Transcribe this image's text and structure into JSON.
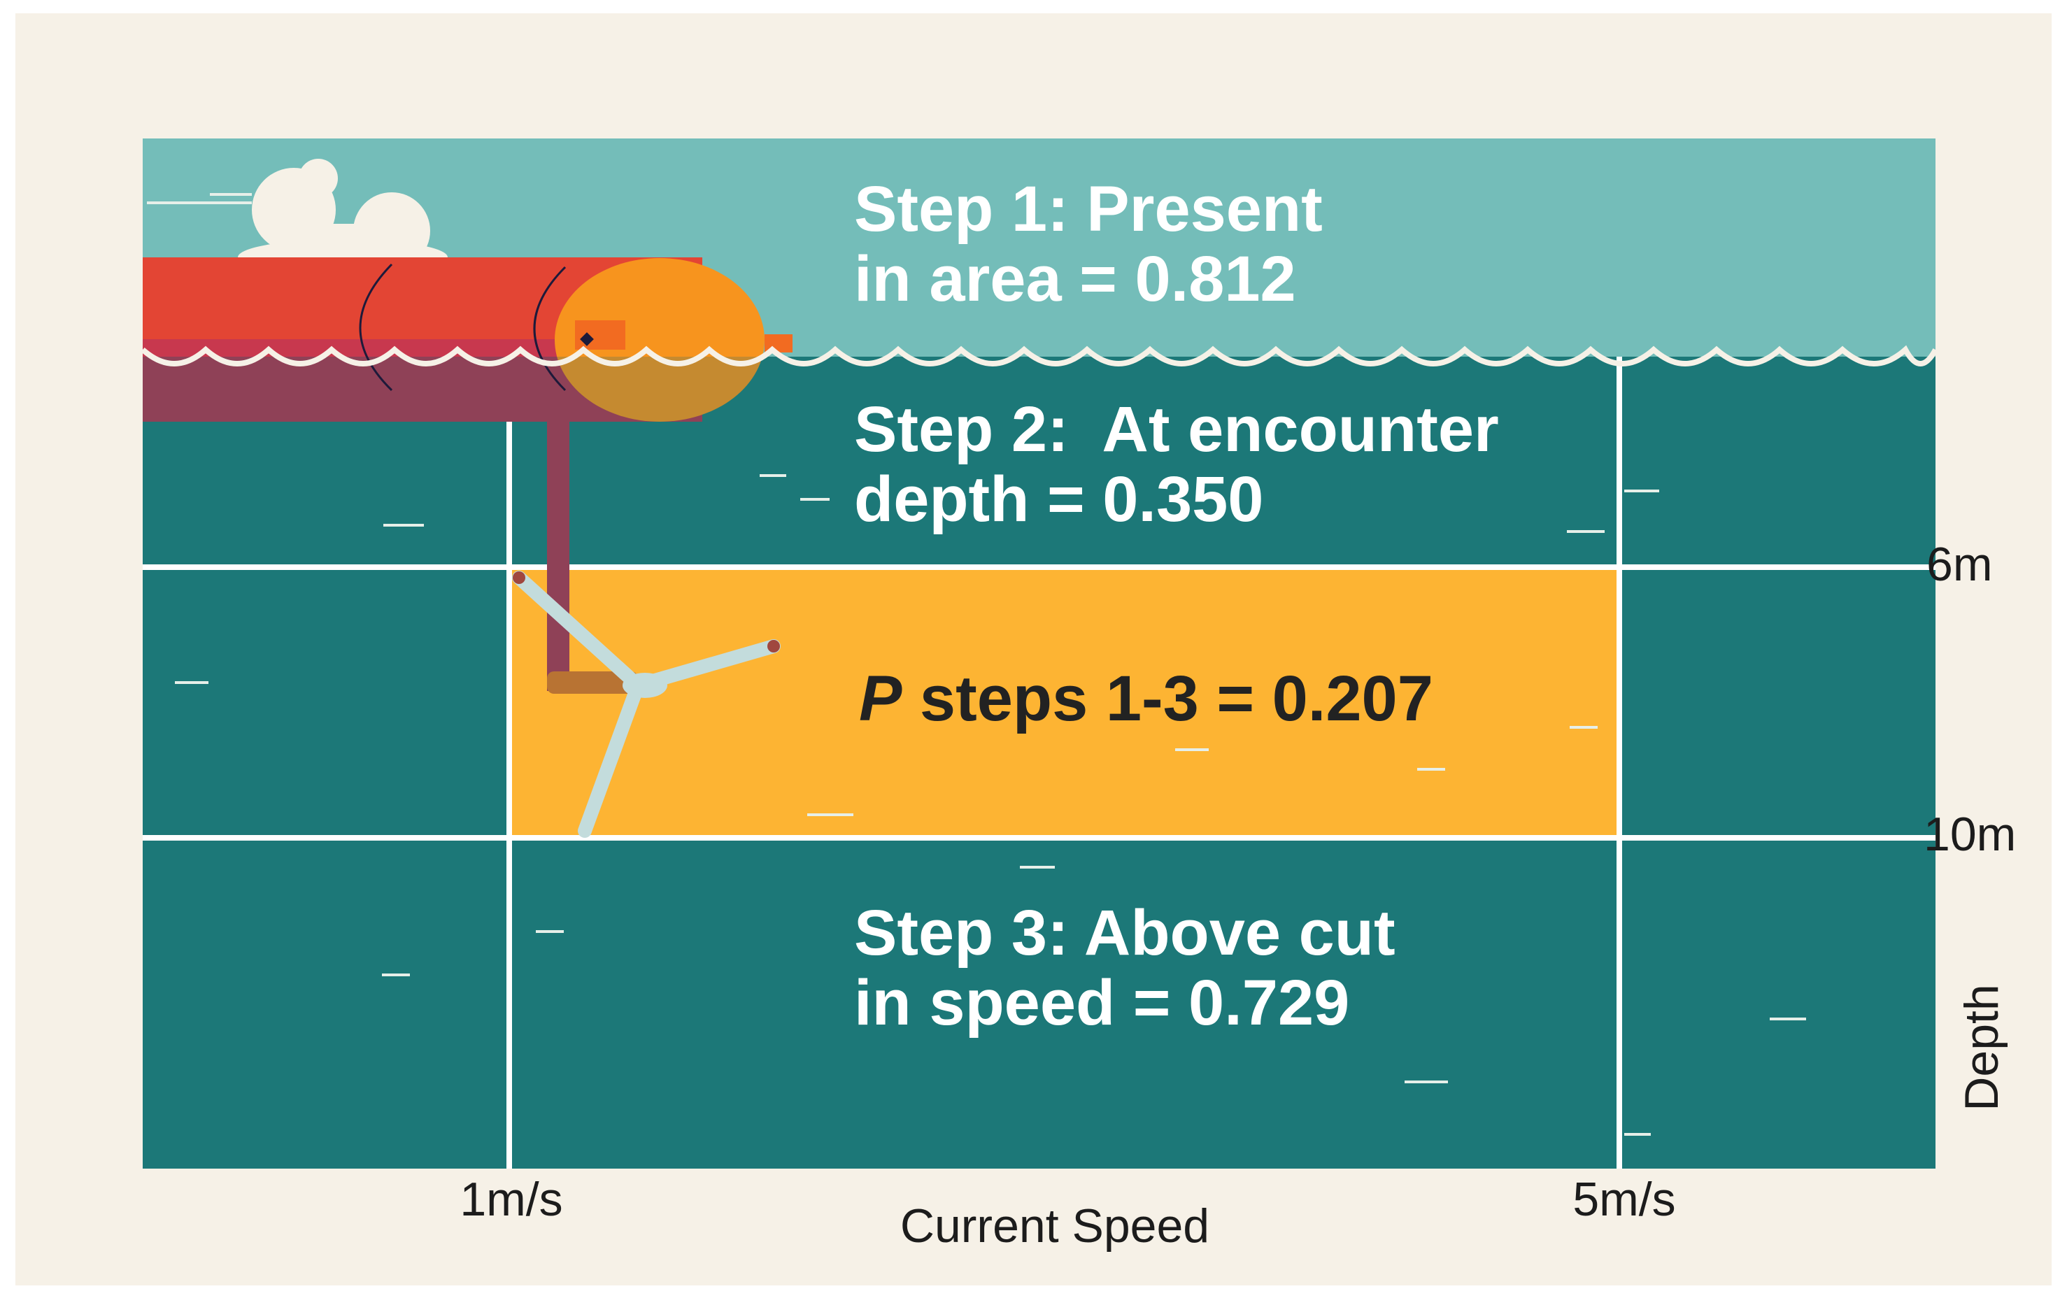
{
  "steps": {
    "step1": {
      "line1": "Step 1: Present",
      "line2": "in area = 0.812"
    },
    "step2": {
      "line1": "Step 2:  At encounter",
      "line2": "depth = 0.350"
    },
    "combined": {
      "italic": "P",
      "rest": " steps 1-3 = 0.207"
    },
    "step3": {
      "line1": "Step 3: Above cut",
      "line2": "in speed = 0.729"
    }
  },
  "axes": {
    "x_label": "Current Speed",
    "x_ticks": [
      "1m/s",
      "5m/s"
    ],
    "y_label": "Depth",
    "y_ticks": [
      "6m",
      "10m"
    ]
  },
  "colors": {
    "background": "#f6f1e7",
    "sky": "#74bdb9",
    "water": "#1c7878",
    "highlight": "#fdb433",
    "hull": "#e34534",
    "hull_submerged": "#8f4157",
    "nacelle": "#f7941e",
    "blade": "#c3dcdc"
  }
}
